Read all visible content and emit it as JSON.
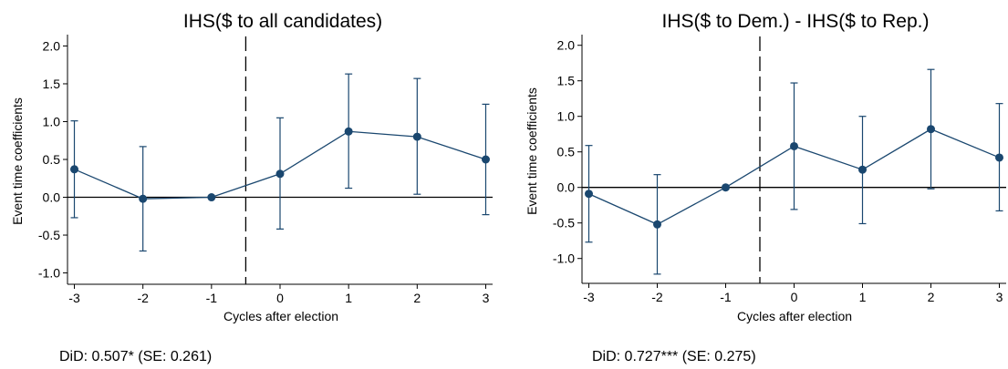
{
  "chart_data": [
    {
      "type": "line",
      "title": "IHS($ to all candidates)",
      "xlabel": "Cycles after election",
      "ylabel": "Event time coefficients",
      "x": [
        -3,
        -2,
        -1,
        0,
        1,
        2,
        3
      ],
      "series": [
        {
          "values": [
            0.37,
            -0.02,
            0.0,
            0.31,
            0.87,
            0.8,
            0.5
          ],
          "ci_lower": [
            -0.27,
            -0.71,
            0.0,
            -0.42,
            0.12,
            0.04,
            -0.23
          ],
          "ci_upper": [
            1.01,
            0.67,
            0.0,
            1.05,
            1.63,
            1.57,
            1.23
          ]
        }
      ],
      "xlim": [
        -3.1,
        3.1
      ],
      "ylim": [
        -1.15,
        2.15
      ],
      "yticks": [
        2.0,
        1.5,
        1.0,
        0.5,
        0.0,
        -0.5,
        -1.0
      ],
      "ytick_labels": [
        "2.0",
        "1.5",
        "1.0",
        "0.5",
        "0.0",
        "-0.5",
        "-1.0"
      ],
      "xticks": [
        -3,
        -2,
        -1,
        0,
        1,
        2,
        3
      ],
      "xtick_labels": [
        "-3",
        "-2",
        "-1",
        "0",
        "1",
        "2",
        "3"
      ],
      "reference_hline": 0,
      "reference_vline": -0.5,
      "note": "DiD: 0.507* (SE: 0.261)",
      "grid": false
    },
    {
      "type": "line",
      "title": "IHS($ to Dem.) - IHS($ to Rep.)",
      "xlabel": "Cycles after election",
      "ylabel": "Event time coefficients",
      "x": [
        -3,
        -2,
        -1,
        0,
        1,
        2,
        3
      ],
      "series": [
        {
          "values": [
            -0.09,
            -0.52,
            0.0,
            0.58,
            0.25,
            0.82,
            0.42
          ],
          "ci_lower": [
            -0.77,
            -1.22,
            0.0,
            -0.31,
            -0.51,
            -0.02,
            -0.33
          ],
          "ci_upper": [
            0.59,
            0.18,
            0.0,
            1.47,
            1.0,
            1.66,
            1.18
          ]
        }
      ],
      "xlim": [
        -3.1,
        3.1
      ],
      "ylim": [
        -1.35,
        2.15
      ],
      "yticks": [
        2.0,
        1.5,
        1.0,
        0.5,
        0.0,
        -0.5,
        -1.0
      ],
      "ytick_labels": [
        "2.0",
        "1.5",
        "1.0",
        "0.5",
        "0.0",
        "-0.5",
        "-1.0"
      ],
      "xticks": [
        -3,
        -2,
        -1,
        0,
        1,
        2,
        3
      ],
      "xtick_labels": [
        "-3",
        "-2",
        "-1",
        "0",
        "1",
        "2",
        "3"
      ],
      "reference_hline": 0,
      "reference_vline": -0.5,
      "note": "DiD: 0.727*** (SE: 0.275)",
      "grid": false
    }
  ],
  "colors": {
    "series": "#1a476f",
    "axis": "#000000",
    "background": "#ffffff"
  }
}
